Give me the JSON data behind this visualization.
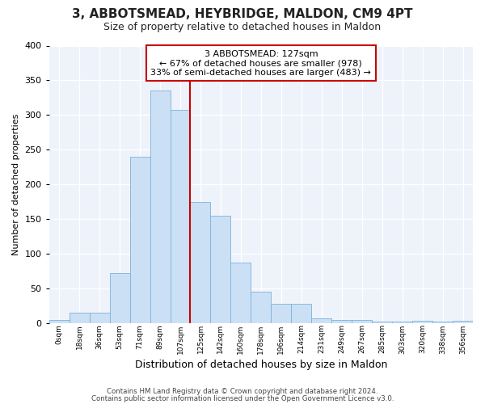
{
  "title": "3, ABBOTSMEAD, HEYBRIDGE, MALDON, CM9 4PT",
  "subtitle": "Size of property relative to detached houses in Maldon",
  "xlabel": "Distribution of detached houses by size in Maldon",
  "ylabel": "Number of detached properties",
  "bin_labels": [
    "0sqm",
    "18sqm",
    "36sqm",
    "53sqm",
    "71sqm",
    "89sqm",
    "107sqm",
    "125sqm",
    "142sqm",
    "160sqm",
    "178sqm",
    "196sqm",
    "214sqm",
    "231sqm",
    "249sqm",
    "267sqm",
    "285sqm",
    "303sqm",
    "320sqm",
    "338sqm",
    "356sqm"
  ],
  "bar_heights": [
    4,
    15,
    15,
    72,
    240,
    335,
    307,
    175,
    155,
    87,
    45,
    28,
    28,
    7,
    4,
    4,
    2,
    2,
    3,
    2,
    3
  ],
  "bar_color": "#cce0f5",
  "bar_edge_color": "#7ab3d8",
  "vline_x_index": 7,
  "vline_color": "#cc0000",
  "annotation_line1": "3 ABBOTSMEAD: 127sqm",
  "annotation_line2": "← 67% of detached houses are smaller (978)",
  "annotation_line3": "33% of semi-detached houses are larger (483) →",
  "annotation_box_color": "#ffffff",
  "annotation_box_edge": "#cc0000",
  "footer1": "Contains HM Land Registry data © Crown copyright and database right 2024.",
  "footer2": "Contains public sector information licensed under the Open Government Licence v3.0.",
  "ylim": [
    0,
    400
  ],
  "yticks": [
    0,
    50,
    100,
    150,
    200,
    250,
    300,
    350,
    400
  ],
  "bg_color": "#eef3fb",
  "fig_bg_color": "#ffffff",
  "grid_color": "#ffffff"
}
